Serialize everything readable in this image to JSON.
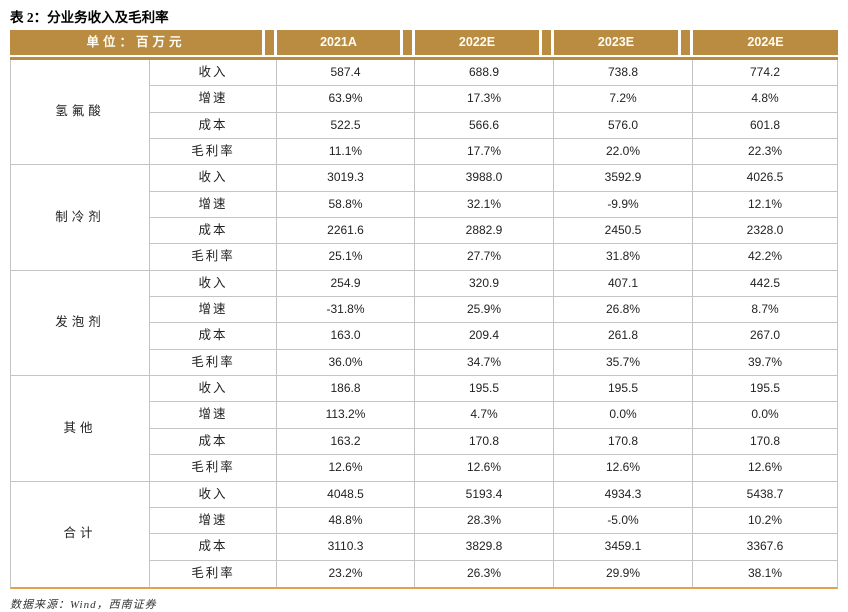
{
  "title": "表 2：分业务收入及毛利率",
  "footer": {
    "source": "数据来源：Wind，西南证券"
  },
  "colors": {
    "header_bg": "#B98C42",
    "bottom_border": "#E2A24C",
    "grid_line": "#C4C4C4",
    "header_text": "#FFFDF4"
  },
  "table": {
    "unit_header": "单位：百万元",
    "year_columns": [
      "2021A",
      "2022E",
      "2023E",
      "2024E"
    ],
    "metric_labels": [
      "收入",
      "增速",
      "成本",
      "毛利率"
    ],
    "groups": [
      {
        "name": "氢氟酸",
        "rows": [
          {
            "metric": "收入",
            "values": [
              "587.4",
              "688.9",
              "738.8",
              "774.2"
            ]
          },
          {
            "metric": "增速",
            "values": [
              "63.9%",
              "17.3%",
              "7.2%",
              "4.8%"
            ]
          },
          {
            "metric": "成本",
            "values": [
              "522.5",
              "566.6",
              "576.0",
              "601.8"
            ]
          },
          {
            "metric": "毛利率",
            "values": [
              "11.1%",
              "17.7%",
              "22.0%",
              "22.3%"
            ]
          }
        ]
      },
      {
        "name": "制冷剂",
        "rows": [
          {
            "metric": "收入",
            "values": [
              "3019.3",
              "3988.0",
              "3592.9",
              "4026.5"
            ]
          },
          {
            "metric": "增速",
            "values": [
              "58.8%",
              "32.1%",
              "-9.9%",
              "12.1%"
            ]
          },
          {
            "metric": "成本",
            "values": [
              "2261.6",
              "2882.9",
              "2450.5",
              "2328.0"
            ]
          },
          {
            "metric": "毛利率",
            "values": [
              "25.1%",
              "27.7%",
              "31.8%",
              "42.2%"
            ]
          }
        ]
      },
      {
        "name": "发泡剂",
        "rows": [
          {
            "metric": "收入",
            "values": [
              "254.9",
              "320.9",
              "407.1",
              "442.5"
            ]
          },
          {
            "metric": "增速",
            "values": [
              "-31.8%",
              "25.9%",
              "26.8%",
              "8.7%"
            ]
          },
          {
            "metric": "成本",
            "values": [
              "163.0",
              "209.4",
              "261.8",
              "267.0"
            ]
          },
          {
            "metric": "毛利率",
            "values": [
              "36.0%",
              "34.7%",
              "35.7%",
              "39.7%"
            ]
          }
        ]
      },
      {
        "name": "其他",
        "rows": [
          {
            "metric": "收入",
            "values": [
              "186.8",
              "195.5",
              "195.5",
              "195.5"
            ]
          },
          {
            "metric": "增速",
            "values": [
              "113.2%",
              "4.7%",
              "0.0%",
              "0.0%"
            ]
          },
          {
            "metric": "成本",
            "values": [
              "163.2",
              "170.8",
              "170.8",
              "170.8"
            ]
          },
          {
            "metric": "毛利率",
            "values": [
              "12.6%",
              "12.6%",
              "12.6%",
              "12.6%"
            ]
          }
        ]
      },
      {
        "name": "合计",
        "rows": [
          {
            "metric": "收入",
            "values": [
              "4048.5",
              "5193.4",
              "4934.3",
              "5438.7"
            ]
          },
          {
            "metric": "增速",
            "values": [
              "48.8%",
              "28.3%",
              "-5.0%",
              "10.2%"
            ]
          },
          {
            "metric": "成本",
            "values": [
              "3110.3",
              "3829.8",
              "3459.1",
              "3367.6"
            ]
          },
          {
            "metric": "毛利率",
            "values": [
              "23.2%",
              "26.3%",
              "29.9%",
              "38.1%"
            ]
          }
        ]
      }
    ]
  }
}
